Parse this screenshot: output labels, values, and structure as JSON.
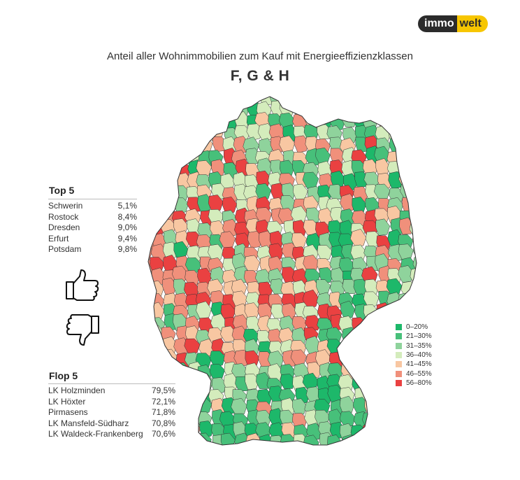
{
  "logo": {
    "left": "immo",
    "right": "welt"
  },
  "title": "Anteil aller Wohnimmobilien zum Kauf mit Energieeffizienzklassen",
  "subtitle": "F, G & H",
  "top": {
    "heading": "Top 5",
    "items": [
      {
        "name": "Schwerin",
        "value": "5,1%"
      },
      {
        "name": "Rostock",
        "value": "8,4%"
      },
      {
        "name": "Dresden",
        "value": "9,0%"
      },
      {
        "name": "Erfurt",
        "value": "9,4%"
      },
      {
        "name": "Potsdam",
        "value": "9,8%"
      }
    ]
  },
  "flop": {
    "heading": "Flop 5",
    "items": [
      {
        "name": "LK Holzminden",
        "value": "79,5%"
      },
      {
        "name": "LK Höxter",
        "value": "72,1%"
      },
      {
        "name": "Pirmasens",
        "value": "71,8%"
      },
      {
        "name": "LK Mansfeld-Südharz",
        "value": "70,8%"
      },
      {
        "name": "LK Waldeck-Frankenberg",
        "value": "70,6%"
      }
    ]
  },
  "legend": [
    {
      "label": "0–20%",
      "color": "#1db86a"
    },
    {
      "label": "21–30%",
      "color": "#47c07a"
    },
    {
      "label": "31–35%",
      "color": "#8fd39c"
    },
    {
      "label": "36–40%",
      "color": "#d4ecbc"
    },
    {
      "label": "41–45%",
      "color": "#f8c7a2"
    },
    {
      "label": "46–55%",
      "color": "#f0907b"
    },
    {
      "label": "56–80%",
      "color": "#ea4141"
    }
  ],
  "icons": {
    "up": "thumbs-up-icon",
    "down": "thumbs-down-icon"
  }
}
